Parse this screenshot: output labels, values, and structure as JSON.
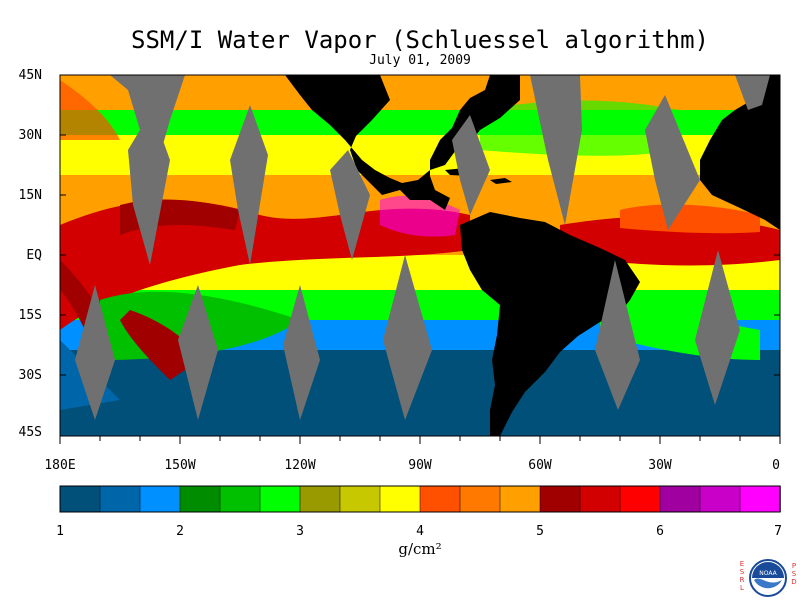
{
  "title": "SSM/I Water Vapor (Schluessel algorithm)",
  "date": "July 01, 2009",
  "lat_labels": [
    "45N",
    "30N",
    "15N",
    "EQ",
    "15S",
    "30S",
    "45S"
  ],
  "lon_labels": [
    "180E",
    "150W",
    "120W",
    "90W",
    "60W",
    "30W",
    "0"
  ],
  "colorbar": {
    "ticks": [
      "1",
      "2",
      "3",
      "4",
      "5",
      "6",
      "7"
    ],
    "unit": "g/cm²",
    "colors": [
      "#00507a",
      "#0066aa",
      "#0090ff",
      "#008c00",
      "#00c000",
      "#00ff00",
      "#999900",
      "#c8c800",
      "#ffff00",
      "#ff5000",
      "#ff7800",
      "#ffa000",
      "#a00000",
      "#d20000",
      "#ff0000",
      "#a000a0",
      "#c800c8",
      "#ff00ff"
    ]
  },
  "logo": {
    "left_text": "ESRL",
    "right_text": "PSD",
    "center_text": "NOAA"
  },
  "colors": {
    "land": "#000000",
    "no_data_swath_gap": "#707070",
    "frame": "#000000"
  }
}
